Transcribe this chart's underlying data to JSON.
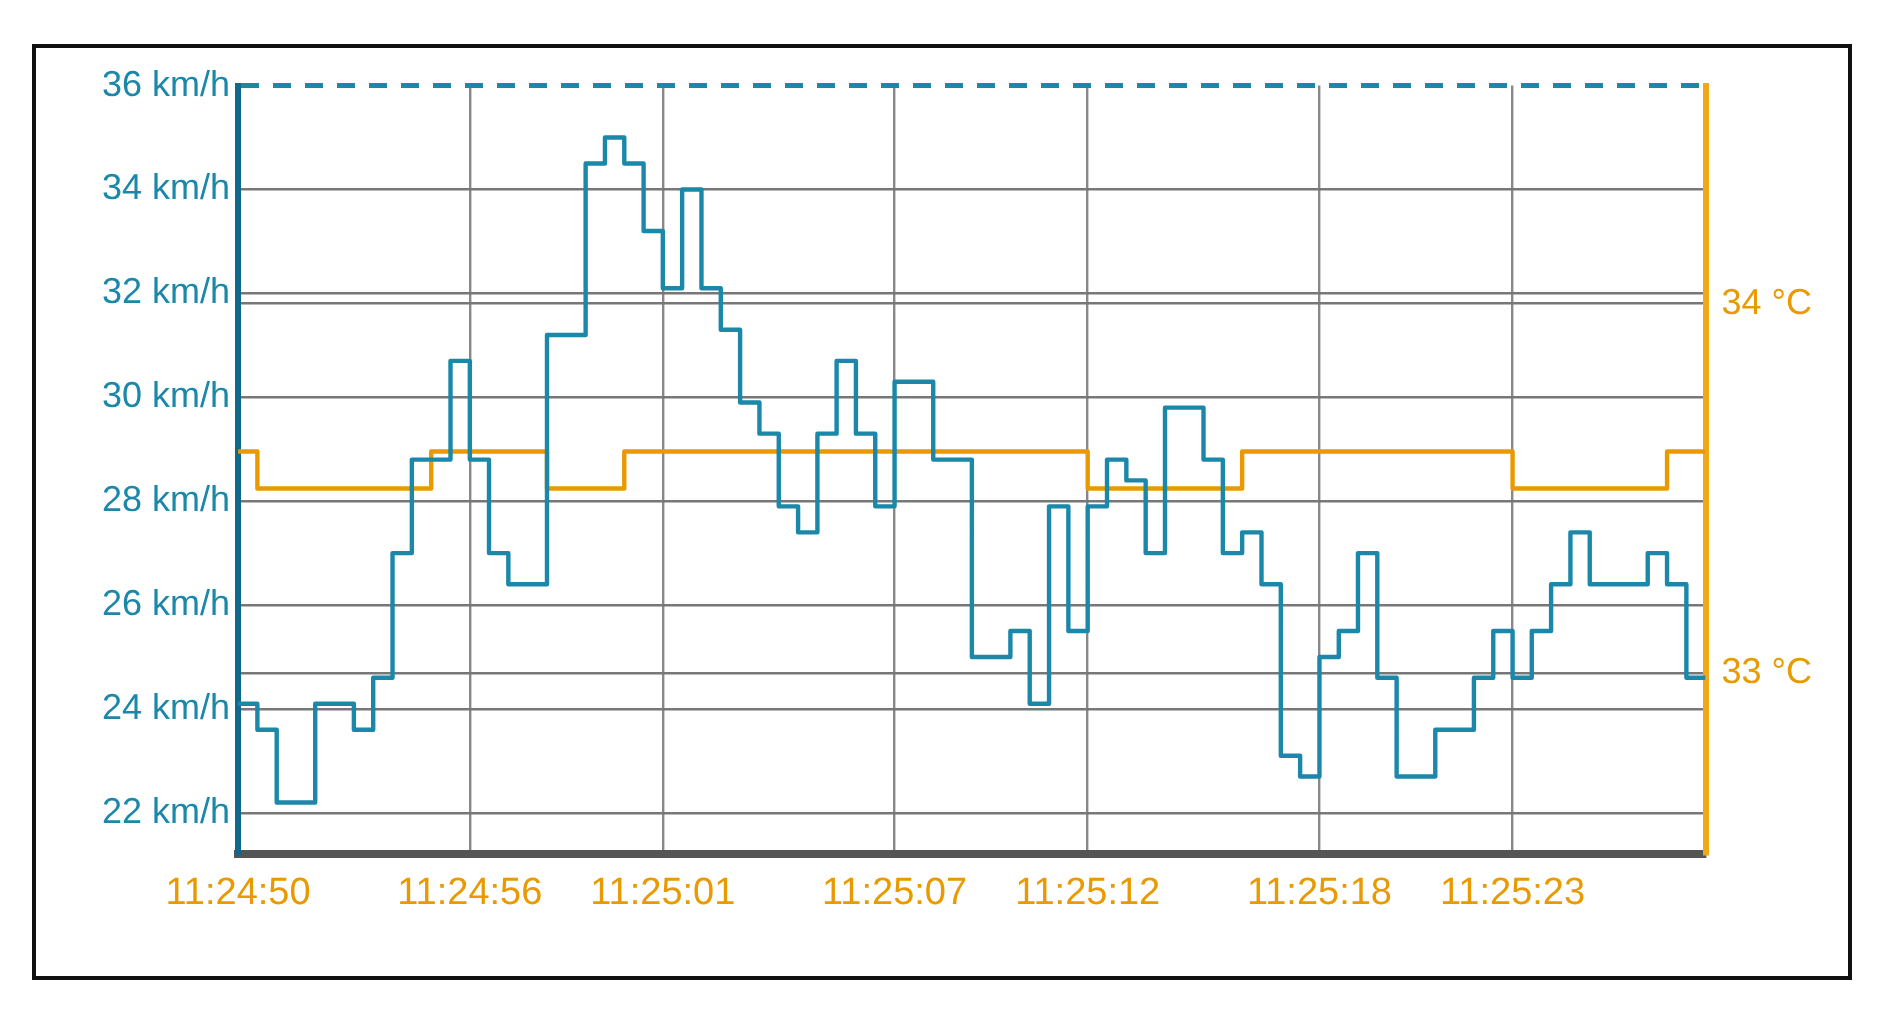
{
  "chart_data": {
    "type": "step",
    "grid": true,
    "legend": false,
    "marker": "none",
    "line_style": "solid",
    "xlim": [
      11.413889,
      11.424444
    ],
    "xticks": [
      {
        "value": 11.413889,
        "label": "11:24:50"
      },
      {
        "value": 11.415556,
        "label": "11:24:56"
      },
      {
        "value": 11.416944,
        "label": "11:25:01"
      },
      {
        "value": 11.418611,
        "label": "11:25:07"
      },
      {
        "value": 11.42,
        "label": "11:25:12"
      },
      {
        "value": 11.421667,
        "label": "11:25:18"
      },
      {
        "value": 11.423056,
        "label": "11:25:23"
      }
    ],
    "ylim": [
      21.2,
      36
    ],
    "yticks": [
      {
        "value": 22,
        "label": "22 km/h"
      },
      {
        "value": 24,
        "label": "24 km/h"
      },
      {
        "value": 26,
        "label": "26 km/h"
      },
      {
        "value": 28,
        "label": "28 km/h"
      },
      {
        "value": 30,
        "label": "30 km/h"
      },
      {
        "value": 32,
        "label": "32 km/h"
      },
      {
        "value": 34,
        "label": "34 km/h"
      },
      {
        "value": 36,
        "label": "36 km/h"
      }
    ],
    "y2lim": [
      32.51,
      34.59
    ],
    "y2ticks": [
      {
        "value": 33,
        "label": "33 °C"
      },
      {
        "value": 34,
        "label": "34 °C"
      }
    ],
    "series": [
      {
        "color": "#1b88aa",
        "x": [
          11.413889,
          11.414028,
          11.414167,
          11.414444,
          11.414722,
          11.414861,
          11.415,
          11.415139,
          11.415417,
          11.415556,
          11.415694,
          11.415833,
          11.416111,
          11.416389,
          11.416528,
          11.416667,
          11.416806,
          11.416944,
          11.417083,
          11.417222,
          11.417361,
          11.4175,
          11.417639,
          11.417778,
          11.417917,
          11.418056,
          11.418194,
          11.418333,
          11.418472,
          11.418611,
          11.418889,
          11.419167,
          11.419444,
          11.419583,
          11.419722,
          11.419861,
          11.42,
          11.420139,
          11.420278,
          11.420417,
          11.420556,
          11.420833,
          11.420972,
          11.421111,
          11.42125,
          11.421389,
          11.421528,
          11.421667,
          11.421806,
          11.421944,
          11.422083,
          11.422222,
          11.4225,
          11.422778,
          11.422917,
          11.423056,
          11.423194,
          11.423333,
          11.423472,
          11.423611,
          11.424028,
          11.424167,
          11.424306,
          11.424444
        ],
        "values": [
          24.1,
          23.6,
          22.2,
          24.1,
          23.6,
          24.6,
          27.0,
          28.8,
          30.7,
          28.8,
          27.0,
          26.4,
          31.2,
          34.5,
          35.0,
          34.5,
          33.2,
          32.1,
          34.0,
          32.1,
          31.3,
          29.9,
          29.3,
          27.9,
          27.4,
          29.3,
          30.7,
          29.3,
          27.9,
          30.3,
          28.8,
          25.0,
          25.5,
          24.1,
          27.9,
          25.5,
          27.9,
          28.8,
          28.4,
          27.0,
          29.8,
          28.8,
          27.0,
          27.4,
          26.4,
          23.1,
          22.7,
          25.0,
          25.5,
          27.0,
          24.6,
          22.7,
          23.6,
          24.6,
          25.5,
          24.6,
          25.5,
          26.4,
          27.4,
          26.4,
          27.0,
          26.4,
          24.6,
          24.6
        ]
      },
      {
        "color": "#e89a00",
        "axis": "y2",
        "x": [
          11.413889,
          11.414028,
          11.415278,
          11.416111,
          11.416667,
          11.42,
          11.421111,
          11.423056,
          11.424167,
          11.424444
        ],
        "values": [
          33.6,
          33.5,
          33.6,
          33.5,
          33.6,
          33.5,
          33.6,
          33.5,
          33.6,
          33.6
        ]
      }
    ]
  }
}
